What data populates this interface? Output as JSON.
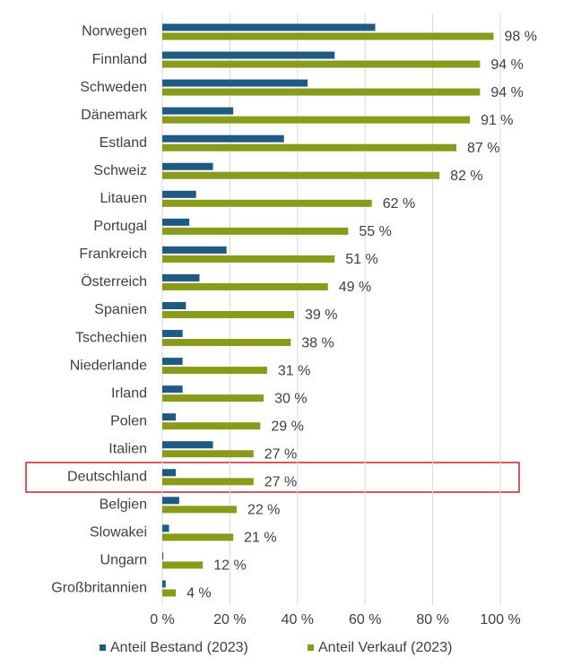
{
  "chart_data": {
    "type": "hbar",
    "categories": [
      "Norwegen",
      "Finnland",
      "Schweden",
      "Dänemark",
      "Estland",
      "Schweiz",
      "Litauen",
      "Portugal",
      "Frankreich",
      "Österreich",
      "Spanien",
      "Tschechien",
      "Niederlande",
      "Irland",
      "Polen",
      "Italien",
      "Deutschland",
      "Belgien",
      "Slowakei",
      "Ungarn",
      "Großbritannien"
    ],
    "series": [
      {
        "name": "Anteil Bestand (2023)",
        "color": "#1f5a82",
        "values": [
          63,
          51,
          43,
          21,
          36,
          15,
          10,
          8,
          19,
          11,
          7,
          6,
          6,
          6,
          4,
          15,
          4,
          5,
          2,
          0.3,
          1
        ]
      },
      {
        "name": "Anteil Verkauf (2023)",
        "color": "#8a9a1a",
        "values": [
          98,
          94,
          94,
          91,
          87,
          82,
          62,
          55,
          51,
          49,
          39,
          38,
          31,
          30,
          29,
          27,
          27,
          22,
          21,
          12,
          4
        ],
        "value_labels": [
          "98 %",
          "94 %",
          "94 %",
          "91 %",
          "87 %",
          "82 %",
          "62 %",
          "55 %",
          "51 %",
          "49 %",
          "39 %",
          "38 %",
          "31 %",
          "30 %",
          "29 %",
          "27 %",
          "27 %",
          "22 %",
          "21 %",
          "12 %",
          "4 %"
        ]
      }
    ],
    "xlim": [
      0,
      100
    ],
    "xticks": [
      {
        "value": 0,
        "label": "0 %"
      },
      {
        "value": 20,
        "label": "20 %"
      },
      {
        "value": 40,
        "label": "40 %"
      },
      {
        "value": 60,
        "label": "60 %"
      },
      {
        "value": 80,
        "label": "80 %"
      },
      {
        "value": 100,
        "label": "100 %"
      }
    ],
    "grid": true,
    "legend": "bottom"
  }
}
